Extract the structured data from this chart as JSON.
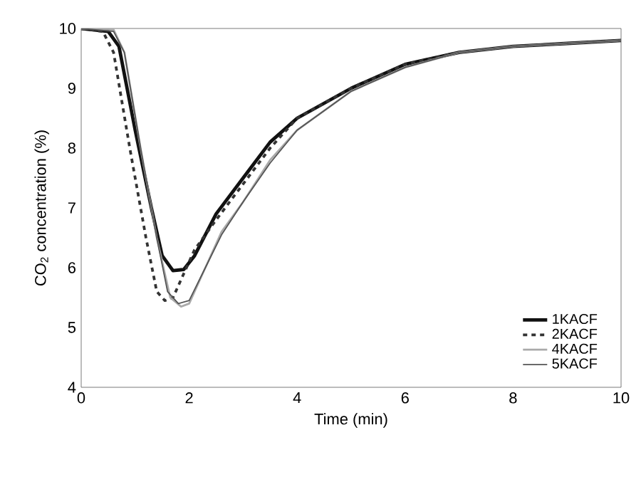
{
  "chart_data": {
    "type": "line",
    "xlabel": "Time (min)",
    "ylabel": "CO$_{2}$ concentration (%)",
    "xlim": [
      0,
      10
    ],
    "ylim": [
      4,
      10
    ],
    "xticks": [
      0,
      2,
      4,
      6,
      8,
      10
    ],
    "yticks": [
      4,
      5,
      6,
      7,
      8,
      9,
      10
    ],
    "grid": false,
    "legend": "bottom right",
    "marker": "none",
    "series": [
      {
        "name": "1KACF",
        "color": "#111111",
        "line_style": "solid",
        "x": [
          0,
          0.5,
          0.7,
          1.0,
          1.3,
          1.5,
          1.7,
          1.9,
          2.1,
          2.5,
          3,
          3.5,
          4,
          5,
          6,
          7,
          8,
          9,
          10
        ],
        "values": [
          10,
          9.95,
          9.7,
          8.3,
          7.0,
          6.2,
          5.95,
          5.97,
          6.2,
          6.9,
          7.5,
          8.1,
          8.5,
          9.0,
          9.4,
          9.6,
          9.7,
          9.75,
          9.8
        ]
      },
      {
        "name": "2KACF",
        "color": "#333333",
        "line_style": "dashed",
        "x": [
          0,
          0.4,
          0.6,
          0.9,
          1.2,
          1.4,
          1.55,
          1.7,
          1.9,
          2.1,
          2.5,
          3,
          3.5,
          4,
          5,
          6,
          7,
          8,
          9,
          10
        ],
        "values": [
          10,
          9.95,
          9.6,
          8.0,
          6.5,
          5.6,
          5.45,
          5.5,
          5.9,
          6.3,
          6.8,
          7.4,
          8.0,
          8.5,
          9.0,
          9.4,
          9.6,
          9.7,
          9.75,
          9.8
        ]
      },
      {
        "name": "4KACF",
        "color": "#aaaaaa",
        "line_style": "solid",
        "x": [
          0,
          0.6,
          0.8,
          1.1,
          1.4,
          1.65,
          1.85,
          2.0,
          2.3,
          2.6,
          3,
          3.5,
          4,
          5,
          6,
          7,
          8,
          9,
          10
        ],
        "values": [
          10,
          9.98,
          9.6,
          8.0,
          6.5,
          5.5,
          5.35,
          5.4,
          6.0,
          6.6,
          7.1,
          7.8,
          8.3,
          8.95,
          9.35,
          9.6,
          9.7,
          9.75,
          9.8
        ]
      },
      {
        "name": "5KACF",
        "color": "#555555",
        "line_style": "solid",
        "x": [
          0,
          0.6,
          0.8,
          1.1,
          1.4,
          1.6,
          1.8,
          2.0,
          2.3,
          2.6,
          3,
          3.5,
          4,
          5,
          6,
          7,
          8,
          9,
          10
        ],
        "values": [
          10,
          9.95,
          9.6,
          8.0,
          6.5,
          5.6,
          5.4,
          5.45,
          6.0,
          6.55,
          7.1,
          7.75,
          8.3,
          8.95,
          9.35,
          9.6,
          9.7,
          9.75,
          9.8
        ]
      }
    ]
  }
}
